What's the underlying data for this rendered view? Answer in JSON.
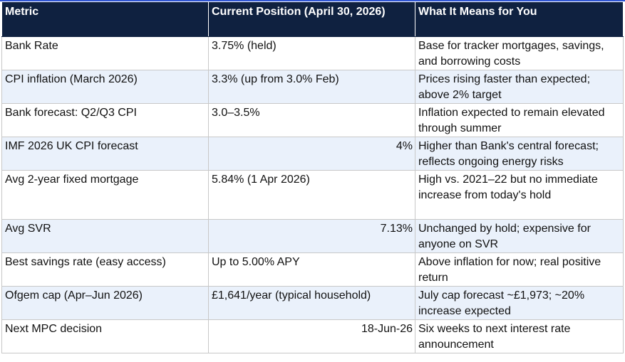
{
  "table": {
    "headers": [
      "Metric",
      "Current Position (April 30, 2026)",
      "What It Means for You"
    ],
    "rows": [
      {
        "metric": "Bank Rate",
        "position": "3.75% (held)",
        "meaning": "Base for tracker mortgages, savings, and borrowing costs"
      },
      {
        "metric": "CPI inflation (March 2026)",
        "position": "3.3% (up from 3.0% Feb)",
        "meaning": "Prices rising faster than expected; above 2% target"
      },
      {
        "metric": "Bank forecast: Q2/Q3 CPI",
        "position": "3.0–3.5%",
        "meaning": "Inflation expected to remain elevated through summer"
      },
      {
        "metric": "IMF 2026 UK CPI forecast",
        "position": "4%",
        "meaning": "Higher than Bank's central forecast; reflects ongoing energy risks"
      },
      {
        "metric": "Avg 2-year fixed mortgage",
        "position": "5.84% (1 Apr 2026)",
        "meaning": "High vs. 2021–22 but no immediate increase from today's hold"
      },
      {
        "metric": "Avg SVR",
        "position": "7.13%",
        "meaning": "Unchanged by hold; expensive for anyone on SVR"
      },
      {
        "metric": "Best savings rate (easy access)",
        "position": "Up to 5.00% APY",
        "meaning": "Above inflation for now; real positive return"
      },
      {
        "metric": "Ofgem cap (Apr–Jun 2026)",
        "position": "£1,641/year (typical household)",
        "meaning": "July cap forecast ~£1,973; ~20% increase expected"
      },
      {
        "metric": "Next MPC decision",
        "position": "18-Jun-26",
        "meaning": "Six weeks to next interest rate announcement"
      }
    ]
  },
  "colors": {
    "header_bg": "#0f2140",
    "header_text": "#ffffff",
    "alt_row_bg": "#eaf1fb",
    "accent": "#2f55d4"
  }
}
